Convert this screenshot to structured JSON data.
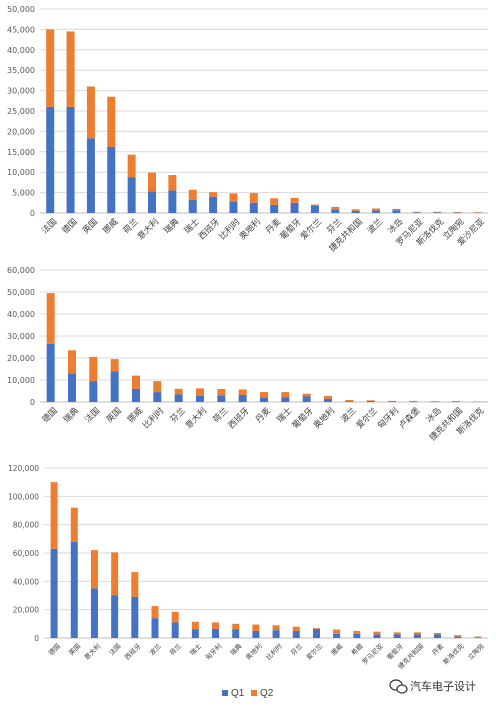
{
  "colors": {
    "q1": "#4472C4",
    "q2": "#ED7D31",
    "grid": "#D9D9D9",
    "axis": "#BFBFBF"
  },
  "legend": {
    "q1": "Q1",
    "q2": "Q2"
  },
  "watermark": {
    "text": "汽车电子设计",
    "icon": "wechat-icon"
  },
  "chart_data": [
    {
      "type": "bar",
      "stacked": true,
      "ylim": [
        0,
        50000
      ],
      "yticks": [
        0,
        5000,
        10000,
        15000,
        20000,
        25000,
        30000,
        35000,
        40000,
        45000,
        50000
      ],
      "ytick_labels": [
        "0",
        "5,000",
        "10,000",
        "15,000",
        "20,000",
        "25,000",
        "30,000",
        "35,000",
        "40,000",
        "45,000",
        "50,000"
      ],
      "grid": true,
      "categories": [
        "法国",
        "德国",
        "英国",
        "挪威",
        "荷兰",
        "意大利",
        "瑞典",
        "瑞士",
        "西班牙",
        "比利时",
        "奥地利",
        "丹麦",
        "葡萄牙",
        "爱尔兰",
        "芬兰",
        "捷克共和国",
        "波兰",
        "冰岛",
        "罗马尼亚",
        "斯洛伐克",
        "立陶宛",
        "爱沙尼亚"
      ],
      "series": [
        {
          "name": "Q1",
          "values": [
            26000,
            26000,
            18300,
            16200,
            8800,
            5300,
            5500,
            3200,
            4000,
            2800,
            2500,
            2000,
            2500,
            1900,
            900,
            500,
            600,
            700,
            150,
            150,
            100,
            80
          ]
        },
        {
          "name": "Q2",
          "values": [
            19000,
            18500,
            12700,
            12300,
            5500,
            4600,
            3800,
            2500,
            1100,
            2000,
            2400,
            1600,
            1200,
            150,
            600,
            400,
            500,
            300,
            150,
            150,
            150,
            120
          ]
        }
      ]
    },
    {
      "type": "bar",
      "stacked": true,
      "ylim": [
        0,
        60000
      ],
      "yticks": [
        0,
        10000,
        20000,
        30000,
        40000,
        50000,
        60000
      ],
      "ytick_labels": [
        "0",
        "10,000",
        "20,000",
        "30,000",
        "40,000",
        "50,000",
        "60,000"
      ],
      "grid": true,
      "categories": [
        "德国",
        "瑞典",
        "法国",
        "英国",
        "挪威",
        "比利时",
        "芬兰",
        "意大利",
        "荷兰",
        "西班牙",
        "丹麦",
        "瑞士",
        "葡萄牙",
        "奥地利",
        "波兰",
        "爱尔兰",
        "匈牙利",
        "卢森堡",
        "冰岛",
        "捷克共和国",
        "斯洛伐克"
      ],
      "series": [
        {
          "name": "Q1",
          "values": [
            26500,
            13000,
            9500,
            14000,
            6000,
            4500,
            3500,
            2800,
            3000,
            3200,
            2000,
            2200,
            2500,
            1500,
            300,
            500,
            200,
            150,
            100,
            150,
            50
          ]
        },
        {
          "name": "Q2",
          "values": [
            23000,
            10500,
            11000,
            5500,
            6000,
            5000,
            2500,
            3400,
            2900,
            2500,
            2500,
            2300,
            1300,
            1200,
            600,
            300,
            300,
            350,
            300,
            300,
            200
          ]
        }
      ]
    },
    {
      "type": "bar",
      "stacked": true,
      "ylim": [
        0,
        120000
      ],
      "yticks": [
        0,
        20000,
        40000,
        60000,
        80000,
        100000,
        120000
      ],
      "ytick_labels": [
        "0",
        "20,000",
        "40,000",
        "60,000",
        "80,000",
        "100,000",
        "120,000"
      ],
      "grid": true,
      "categories": [
        "德国",
        "英国",
        "意大利",
        "法国",
        "西班牙",
        "波兰",
        "荷兰",
        "瑞士",
        "匈牙利",
        "瑞典",
        "奥地利",
        "比利时",
        "芬兰",
        "爱尔兰",
        "挪威",
        "希腊",
        "罗马尼亚",
        "葡萄牙",
        "捷克共和国",
        "丹麦",
        "斯洛伐克",
        "立陶宛"
      ],
      "series": [
        {
          "name": "Q1",
          "values": [
            63000,
            68000,
            35000,
            30000,
            29000,
            14000,
            11000,
            6000,
            6500,
            6000,
            5000,
            5500,
            5000,
            6500,
            3000,
            3000,
            2500,
            2500,
            2500,
            2500,
            1000,
            500
          ]
        },
        {
          "name": "Q2",
          "values": [
            47000,
            24000,
            27000,
            30500,
            17500,
            8500,
            7500,
            5500,
            4500,
            4000,
            4500,
            3500,
            3000,
            500,
            3000,
            2000,
            2000,
            1500,
            1500,
            1000,
            1000,
            500
          ]
        }
      ]
    }
  ]
}
